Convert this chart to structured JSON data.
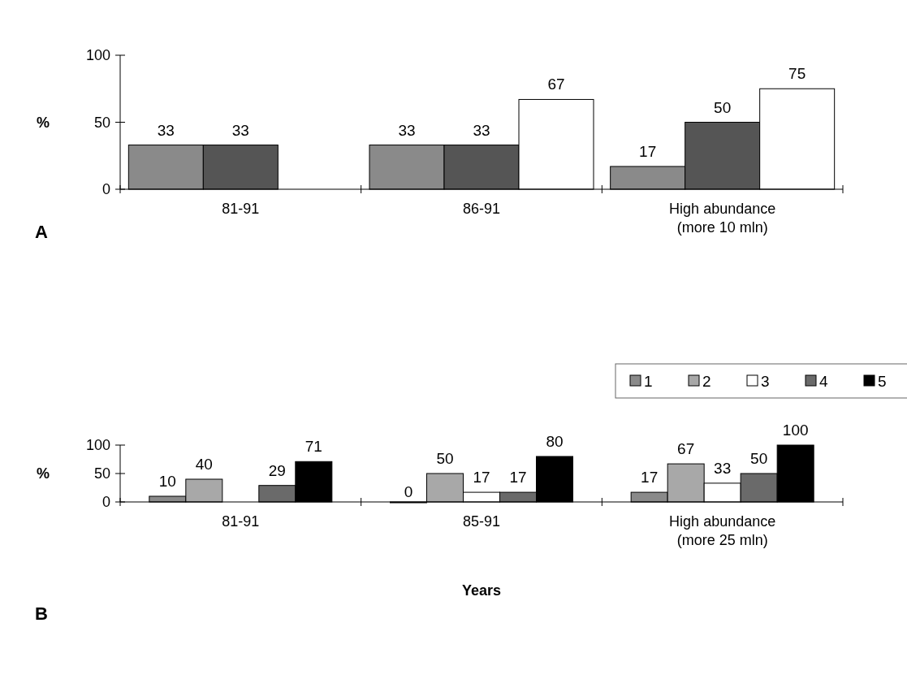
{
  "chart_data": [
    {
      "type": "bar",
      "ylabel": "%",
      "categories": [
        "81-91",
        "86-91",
        "High abundance\n(more 10 mln)"
      ],
      "ylim": [
        0,
        100
      ],
      "yticks": [
        0,
        50,
        100
      ],
      "data_labels": true,
      "legend": false,
      "annotations": [
        "A"
      ],
      "series": [
        {
          "color": "#8a8a8a",
          "values": [
            33,
            33,
            17
          ]
        },
        {
          "color": "#555555",
          "values": [
            33,
            33,
            50
          ]
        },
        {
          "color": "#ffffff",
          "values": [
            null,
            67,
            75
          ]
        }
      ]
    },
    {
      "type": "bar",
      "ylabel": "%",
      "xlabel": "Years",
      "categories": [
        "81-91",
        "85-91",
        "High abundance\n(more 25 mln)"
      ],
      "ylim": [
        0,
        100
      ],
      "yticks": [
        0,
        50,
        100
      ],
      "data_labels": true,
      "legend": "top right",
      "annotations": [
        "B"
      ],
      "series": [
        {
          "name": "1",
          "color": "#8a8a8a",
          "values": [
            10,
            0,
            17
          ]
        },
        {
          "name": "2",
          "color": "#a8a8a8",
          "values": [
            40,
            50,
            67
          ]
        },
        {
          "name": "3",
          "color": "#ffffff",
          "values": [
            null,
            17,
            33
          ]
        },
        {
          "name": "4",
          "color": "#6a6a6a",
          "values": [
            29,
            17,
            50
          ]
        },
        {
          "name": "5",
          "color": "#000000",
          "values": [
            71,
            80,
            100
          ]
        }
      ]
    }
  ]
}
